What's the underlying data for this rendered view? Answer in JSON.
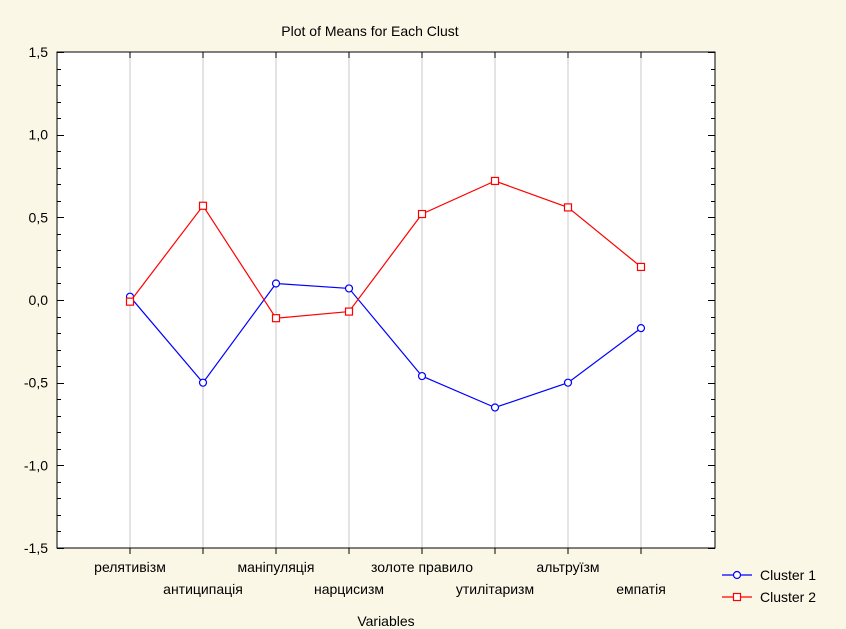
{
  "chart_data": {
    "type": "line",
    "title": "Plot of Means for Each Clust",
    "xlabel": "Variables",
    "ylabel": "",
    "ylim": [
      -1.5,
      1.5
    ],
    "yticks": [
      "-1,5",
      "-1,0",
      "-0,5",
      "0,0",
      "0,5",
      "1,0",
      "1,5"
    ],
    "y_tick_values": [
      -1.5,
      -1.0,
      -0.5,
      0.0,
      0.5,
      1.0,
      1.5
    ],
    "grid": true,
    "legend_position": "bottom-right",
    "categories": [
      "релятивізм",
      "антиципація",
      "маніпуляція",
      "нарцисизм",
      "золоте правило",
      "утилітаризм",
      "альтруїзм",
      "емпатія"
    ],
    "series": [
      {
        "name": "Cluster 1",
        "color": "#0000ff",
        "marker": "circle",
        "values": [
          0.02,
          -0.5,
          0.1,
          0.07,
          -0.46,
          -0.65,
          -0.5,
          -0.17
        ]
      },
      {
        "name": "Cluster 2",
        "color": "#ff0000",
        "marker": "square",
        "values": [
          -0.01,
          0.57,
          -0.11,
          -0.07,
          0.52,
          0.72,
          0.56,
          0.2
        ]
      }
    ]
  }
}
